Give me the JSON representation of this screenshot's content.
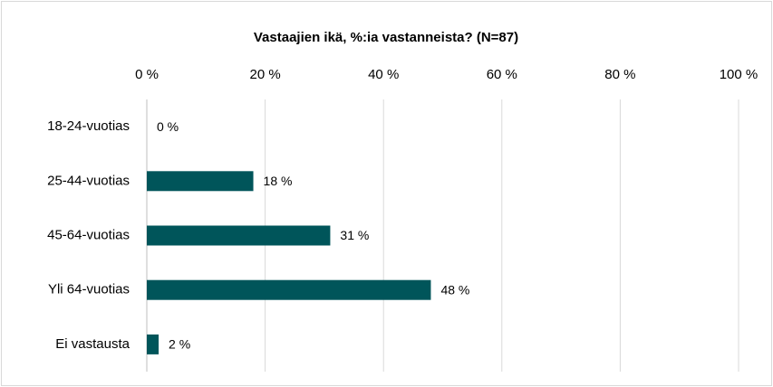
{
  "chart_data": {
    "type": "bar",
    "orientation": "horizontal",
    "title": "Vastaajien ikä, %:ia vastanneista? (N=87)",
    "categories": [
      "18-24-vuotias",
      "25-44-vuotias",
      "45-64-vuotias",
      "Yli 64-vuotias",
      "Ei vastausta"
    ],
    "values": [
      0,
      18,
      31,
      48,
      2
    ],
    "value_labels": [
      "0 %",
      "18 %",
      "31 %",
      "48 %",
      "2 %"
    ],
    "color": "#00555a",
    "xlim": [
      0,
      100
    ],
    "xticks": [
      {
        "value": 0,
        "label": "0 %"
      },
      {
        "value": 20,
        "label": "20 %"
      },
      {
        "value": 40,
        "label": "40 %"
      },
      {
        "value": 60,
        "label": "60 %"
      },
      {
        "value": 80,
        "label": "80 %"
      },
      {
        "value": 100,
        "label": "100 %"
      }
    ],
    "grid": true
  }
}
